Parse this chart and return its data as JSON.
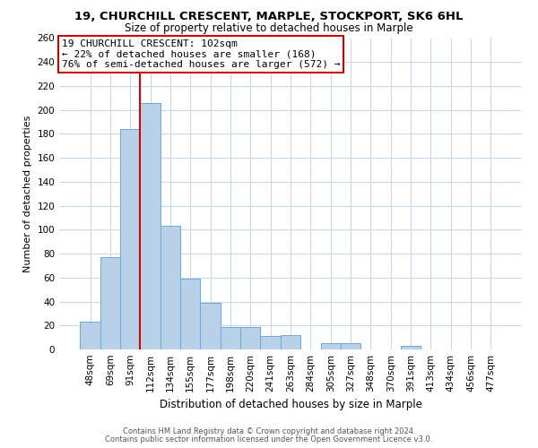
{
  "title": "19, CHURCHILL CRESCENT, MARPLE, STOCKPORT, SK6 6HL",
  "subtitle": "Size of property relative to detached houses in Marple",
  "xlabel": "Distribution of detached houses by size in Marple",
  "ylabel": "Number of detached properties",
  "bar_labels": [
    "48sqm",
    "69sqm",
    "91sqm",
    "112sqm",
    "134sqm",
    "155sqm",
    "177sqm",
    "198sqm",
    "220sqm",
    "241sqm",
    "263sqm",
    "284sqm",
    "305sqm",
    "327sqm",
    "348sqm",
    "370sqm",
    "391sqm",
    "413sqm",
    "434sqm",
    "456sqm",
    "477sqm"
  ],
  "bar_values": [
    23,
    77,
    184,
    206,
    103,
    59,
    39,
    19,
    19,
    11,
    12,
    0,
    5,
    5,
    0,
    0,
    3,
    0,
    0,
    0,
    0
  ],
  "bar_color": "#b8d0e8",
  "bar_edge_color": "#6aaad4",
  "vline_x": 2.5,
  "vline_color": "#dd0000",
  "property_line_label": "19 CHURCHILL CRESCENT: 102sqm",
  "annotation_line1": "← 22% of detached houses are smaller (168)",
  "annotation_line2": "76% of semi-detached houses are larger (572) →",
  "annotation_box_color": "#ffffff",
  "annotation_box_edge": "#cc0000",
  "ylim": [
    0,
    260
  ],
  "yticks": [
    0,
    20,
    40,
    60,
    80,
    100,
    120,
    140,
    160,
    180,
    200,
    220,
    240,
    260
  ],
  "footer1": "Contains HM Land Registry data © Crown copyright and database right 2024.",
  "footer2": "Contains public sector information licensed under the Open Government Licence v3.0.",
  "background_color": "#ffffff",
  "grid_color": "#c8d8ea",
  "title_fontsize": 9.5,
  "subtitle_fontsize": 8.5,
  "xlabel_fontsize": 8.5,
  "ylabel_fontsize": 8,
  "tick_fontsize": 7.5,
  "annot_fontsize": 8,
  "footer_fontsize": 6
}
